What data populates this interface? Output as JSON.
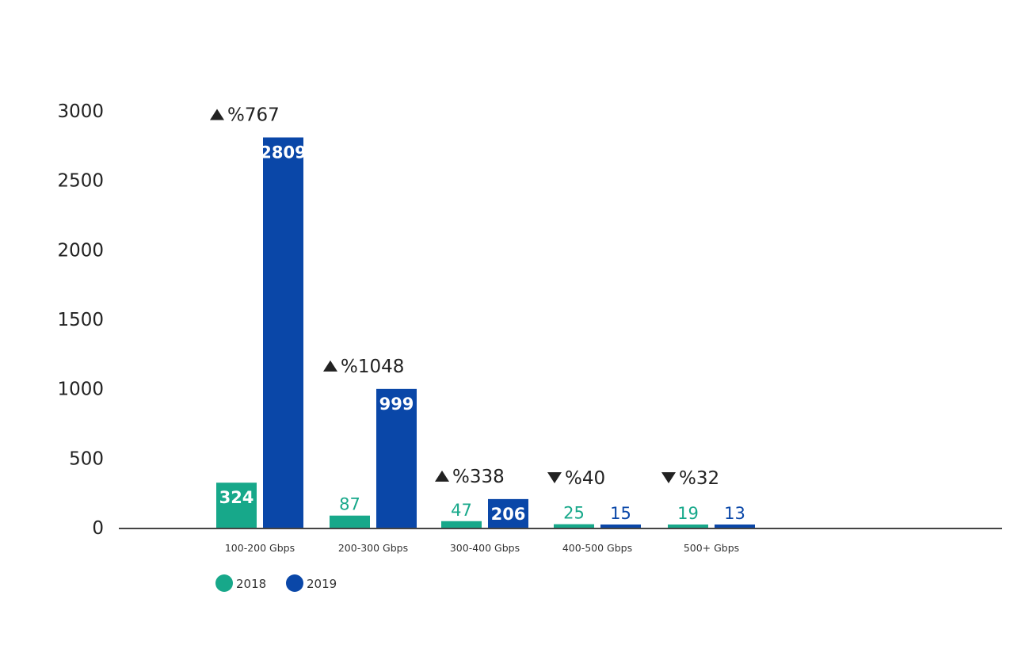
{
  "chart_data": {
    "type": "bar",
    "title": "",
    "xlabel": "",
    "ylabel": "",
    "ylim": [
      0,
      3000
    ],
    "yticks": [
      0,
      500,
      1000,
      1500,
      2000,
      2500,
      3000
    ],
    "categories": [
      "100-200 Gbps",
      "200-300 Gbps",
      "300-400 Gbps",
      "400-500 Gbps",
      "500+ Gbps"
    ],
    "series": [
      {
        "name": "2018",
        "color": "#17a88a",
        "values": [
          324,
          87,
          47,
          25,
          19
        ]
      },
      {
        "name": "2019",
        "color": "#0a47a8",
        "values": [
          2809,
          999,
          206,
          15,
          13
        ]
      }
    ],
    "annotations": [
      {
        "direction": "up",
        "text": "%767"
      },
      {
        "direction": "up",
        "text": "%1048"
      },
      {
        "direction": "up",
        "text": "%338"
      },
      {
        "direction": "down",
        "text": "%40"
      },
      {
        "direction": "down",
        "text": "%32"
      }
    ],
    "legend_position": "bottom-left",
    "grid": false
  }
}
